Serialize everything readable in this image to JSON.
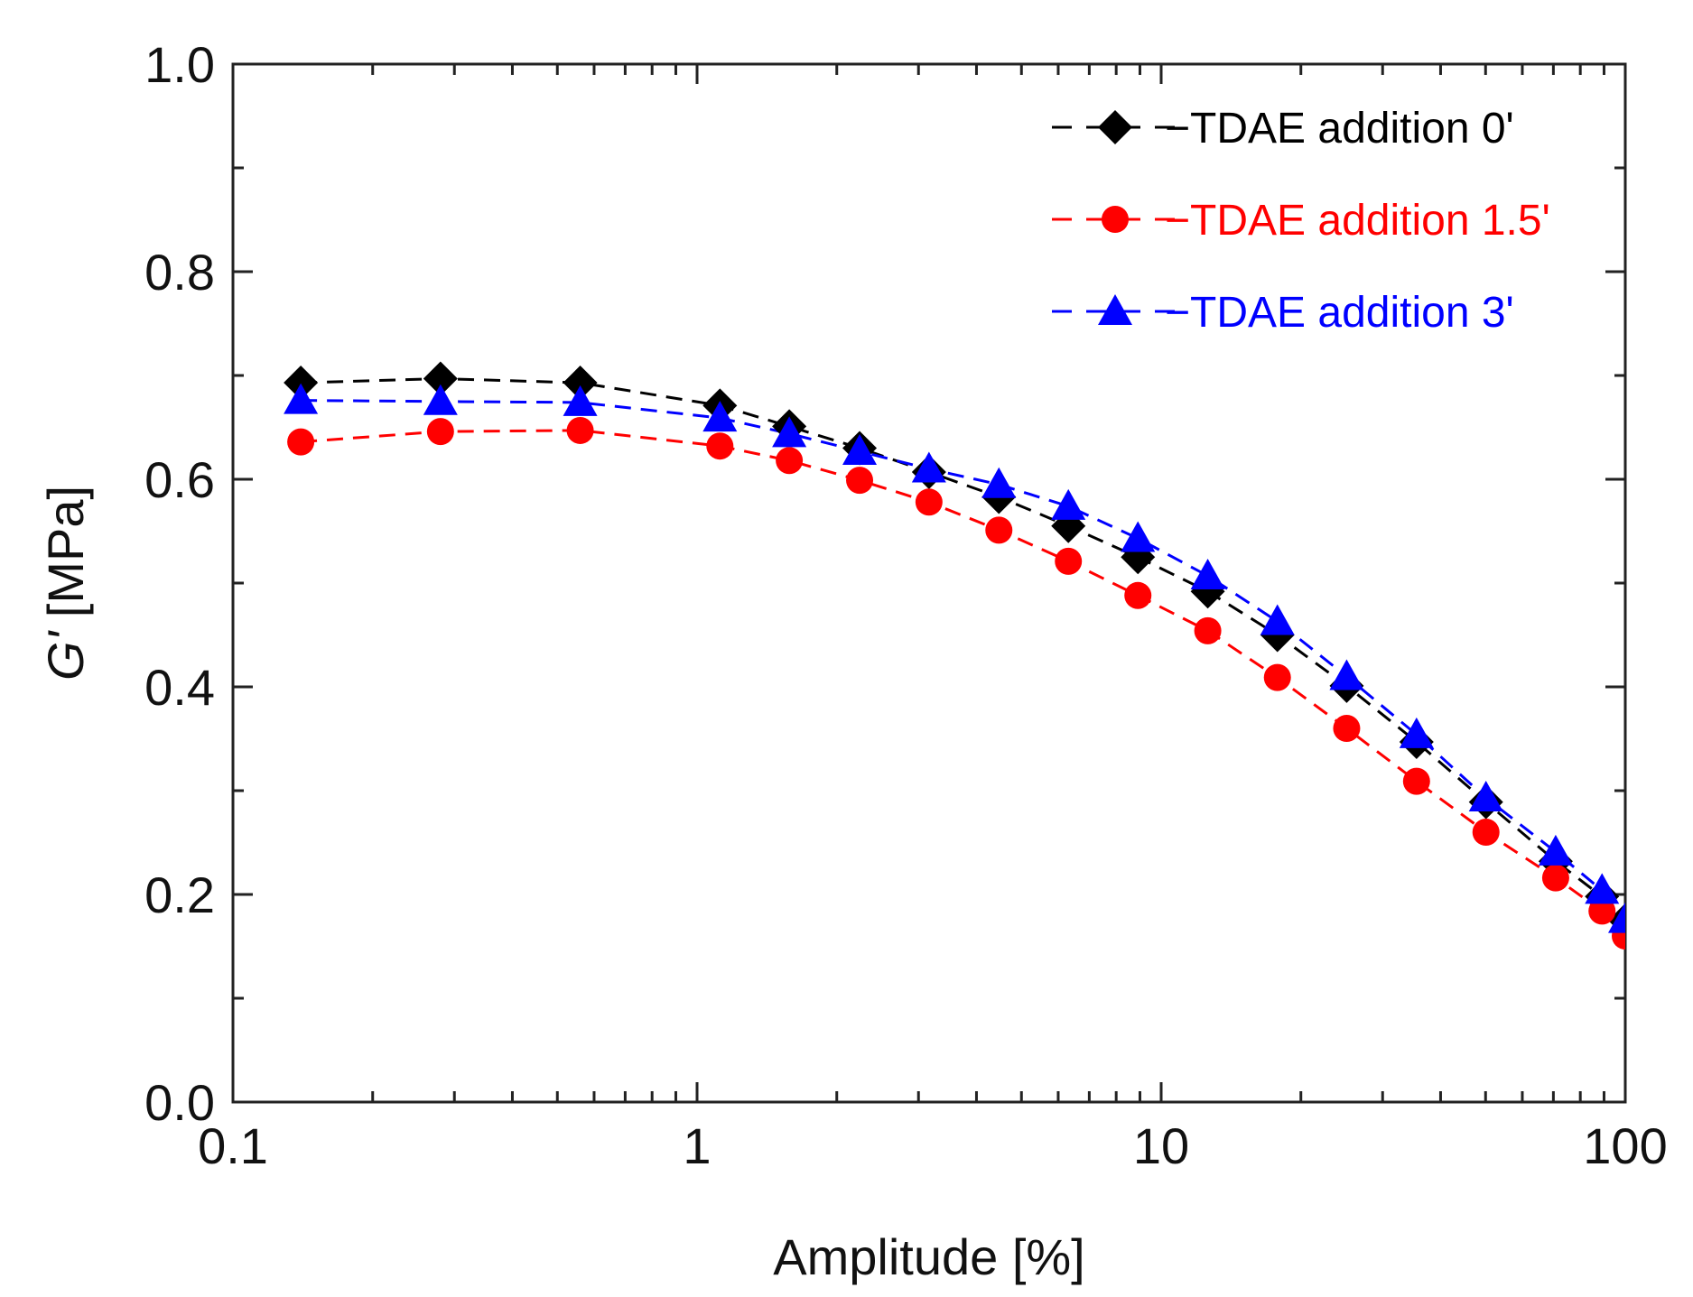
{
  "chart_data": {
    "type": "line",
    "title": "",
    "xlabel": "Amplitude [%]",
    "ylabel_italic": "G'",
    "ylabel_unit": " [MPa]",
    "x_scale": "log",
    "xlim": [
      0.1,
      100
    ],
    "ylim": [
      0.0,
      1.0
    ],
    "x_ticks": [
      {
        "value": 0.1,
        "label": "0.1"
      },
      {
        "value": 1,
        "label": "1"
      },
      {
        "value": 10,
        "label": "10"
      },
      {
        "value": 100,
        "label": "100"
      }
    ],
    "y_ticks": [
      {
        "value": 0.0,
        "label": "0.0"
      },
      {
        "value": 0.2,
        "label": "0.2"
      },
      {
        "value": 0.4,
        "label": "0.4"
      },
      {
        "value": 0.6,
        "label": "0.6"
      },
      {
        "value": 0.8,
        "label": "0.8"
      },
      {
        "value": 1.0,
        "label": "1.0"
      }
    ],
    "grid": false,
    "legend_position": "top-right",
    "line_style": "dashed",
    "x": [
      0.14,
      0.28,
      0.56,
      1.12,
      1.58,
      2.24,
      3.16,
      4.47,
      6.31,
      8.91,
      12.6,
      17.8,
      25.1,
      35.5,
      50.1,
      70.8,
      89.1,
      100
    ],
    "series": [
      {
        "name": "TDAE addition 0'",
        "legend_label": "−TDAE addition 0'",
        "color": "#000000",
        "marker": "diamond",
        "values": [
          0.693,
          0.697,
          0.693,
          0.671,
          0.651,
          0.63,
          0.607,
          0.583,
          0.555,
          0.525,
          0.492,
          0.45,
          0.401,
          0.347,
          0.289,
          0.232,
          0.198,
          0.175
        ]
      },
      {
        "name": "TDAE addition 1.5'",
        "legend_label": "−TDAE addition 1.5'",
        "color": "#ff0000",
        "marker": "circle",
        "values": [
          0.636,
          0.646,
          0.647,
          0.632,
          0.618,
          0.599,
          0.578,
          0.551,
          0.521,
          0.488,
          0.454,
          0.409,
          0.36,
          0.309,
          0.26,
          0.216,
          0.184,
          0.16
        ]
      },
      {
        "name": "TDAE addition 3'",
        "legend_label": "−TDAE addition 3'",
        "color": "#0000ff",
        "marker": "triangle",
        "values": [
          0.676,
          0.675,
          0.674,
          0.659,
          0.644,
          0.627,
          0.61,
          0.595,
          0.574,
          0.543,
          0.507,
          0.463,
          0.41,
          0.354,
          0.293,
          0.241,
          0.204,
          0.176
        ]
      }
    ]
  }
}
